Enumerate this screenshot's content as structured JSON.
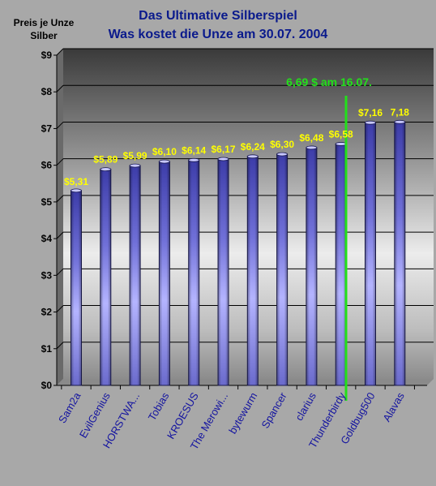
{
  "chart_data": {
    "type": "bar",
    "title": [
      "Das Ultimative Silberspiel",
      "Was kostet die Unze am 30.07. 2004"
    ],
    "ylabel": [
      "Preis je Unze",
      "Silber"
    ],
    "xlabel": "",
    "categories": [
      "Sam2a",
      "EvilGenius",
      "HORSTWA...",
      "Tobias",
      "KROESUS",
      "The Merowi...",
      "bytewurm",
      "Spancer",
      "clarius",
      "Thunderbirdy",
      "Goldbug500",
      "Alavas"
    ],
    "values": [
      5.31,
      5.89,
      5.99,
      6.1,
      6.14,
      6.17,
      6.24,
      6.3,
      6.48,
      6.58,
      7.16,
      7.18
    ],
    "data_labels": [
      "$5,31",
      "$5,89",
      "$5,99",
      "$6,10",
      "$6,14",
      "$6,17",
      "$6,24",
      "$6,30",
      "$6,48",
      "$6,58",
      "$7,16",
      "7,18"
    ],
    "ylim": [
      0,
      9
    ],
    "y_ticks": [
      0,
      1,
      2,
      3,
      4,
      5,
      6,
      7,
      8,
      9
    ],
    "y_tick_labels": [
      "$0",
      "$1",
      "$2",
      "$3",
      "$4",
      "$5",
      "$6",
      "$7",
      "$8",
      "$9"
    ],
    "grid": true,
    "legend": "none",
    "reference_line": {
      "label": "6,69 $  am 16.07.",
      "position": "between Thunderbirdy and Goldbug500",
      "color": "#22e01a"
    },
    "colors": {
      "bar_light": "#b4b4ff",
      "bar_mid": "#8c8cf0",
      "bar_dark": "#3c3ca8",
      "data_label": "#ffff00",
      "category_label": "#1414a0",
      "title": "#0a1a8c",
      "reference_line": "#22e01a"
    }
  }
}
